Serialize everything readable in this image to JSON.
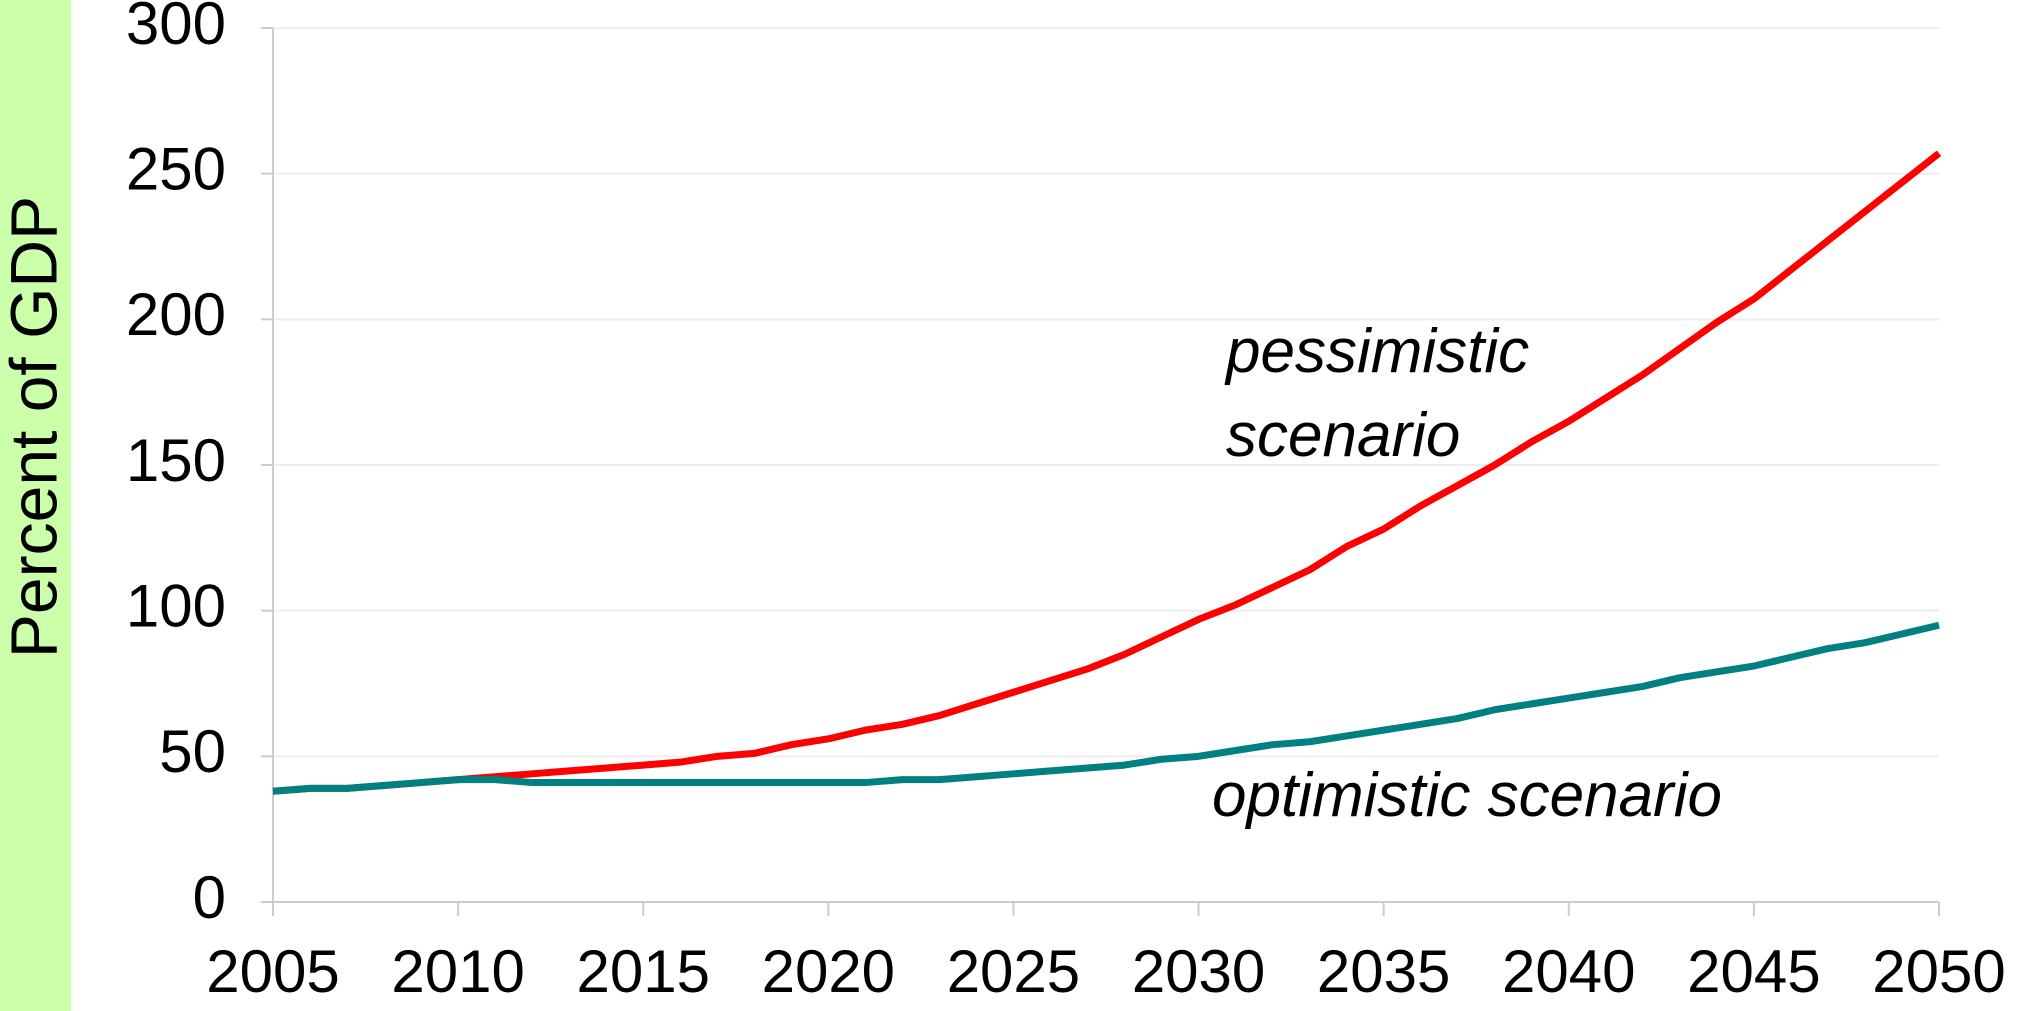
{
  "chart_data": {
    "type": "line",
    "y_label": "Percent of GDP",
    "x": [
      2005,
      2006,
      2007,
      2008,
      2009,
      2010,
      2011,
      2012,
      2013,
      2014,
      2015,
      2016,
      2017,
      2018,
      2019,
      2020,
      2021,
      2022,
      2023,
      2024,
      2025,
      2026,
      2027,
      2028,
      2029,
      2030,
      2031,
      2032,
      2033,
      2034,
      2035,
      2036,
      2037,
      2038,
      2039,
      2040,
      2041,
      2042,
      2043,
      2044,
      2045,
      2046,
      2047,
      2048,
      2049,
      2050
    ],
    "series": [
      {
        "name": "pessimistic scenario",
        "color": "#ff0000",
        "values": [
          38,
          39,
          39,
          40,
          41,
          42,
          43,
          44,
          45,
          46,
          47,
          48,
          50,
          51,
          54,
          56,
          59,
          61,
          64,
          68,
          72,
          76,
          80,
          85,
          91,
          97,
          102,
          108,
          114,
          122,
          128,
          136,
          143,
          150,
          158,
          165,
          173,
          181,
          190,
          199,
          207,
          217,
          227,
          237,
          247,
          257
        ]
      },
      {
        "name": "optimistic scenario",
        "color": "#008080",
        "values": [
          38,
          39,
          39,
          40,
          41,
          42,
          42,
          41,
          41,
          41,
          41,
          41,
          41,
          41,
          41,
          41,
          41,
          42,
          42,
          43,
          44,
          45,
          46,
          47,
          49,
          50,
          52,
          54,
          55,
          57,
          59,
          61,
          63,
          66,
          68,
          70,
          72,
          74,
          77,
          79,
          81,
          84,
          87,
          89,
          92,
          95
        ]
      }
    ],
    "xlim": [
      2005,
      2050
    ],
    "xticks": [
      2005,
      2010,
      2015,
      2020,
      2025,
      2030,
      2035,
      2040,
      2045,
      2050
    ],
    "ylim": [
      0,
      300
    ],
    "yticks": [
      0,
      50,
      100,
      150,
      200,
      250,
      300
    ],
    "grid": true
  }
}
